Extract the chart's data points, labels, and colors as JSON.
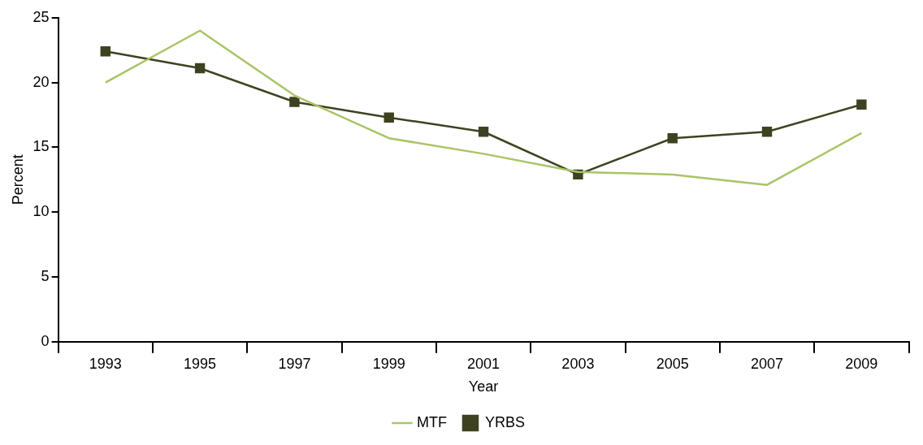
{
  "chart_data": {
    "type": "line",
    "xlabel": "Year",
    "ylabel": "Percent",
    "categories": [
      "1993",
      "1995",
      "1997",
      "1999",
      "2001",
      "2003",
      "2005",
      "2007",
      "2009"
    ],
    "series": [
      {
        "name": "MTF",
        "color": "#a9c467",
        "marker": "none",
        "values": [
          20.0,
          24.0,
          19.0,
          15.7,
          14.5,
          13.1,
          12.9,
          12.1,
          16.1
        ]
      },
      {
        "name": "YRBS",
        "color": "#3f4220",
        "marker": "square",
        "values": [
          22.4,
          21.1,
          18.5,
          17.3,
          16.2,
          12.9,
          15.7,
          16.2,
          18.3
        ]
      }
    ],
    "ylim": [
      0,
      25
    ],
    "yticks": [
      0,
      5,
      10,
      15,
      20,
      25
    ],
    "grid": false,
    "legend": "bottom",
    "line_style": "solid"
  }
}
